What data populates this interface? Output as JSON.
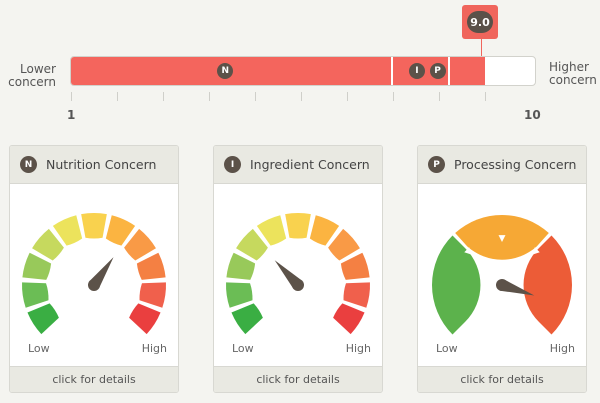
{
  "scale": {
    "left_label": [
      "Lower",
      "concern"
    ],
    "right_label": [
      "Higher",
      "concern"
    ],
    "min_label": "1",
    "max_label": "10",
    "min": 1,
    "max": 10,
    "score": 9.0,
    "score_label": "9.0",
    "fill_color": "#f4655d",
    "markers": [
      {
        "letter": "N",
        "value": 4.0
      },
      {
        "letter": "I",
        "value": 7.7
      },
      {
        "letter": "P",
        "value": 8.1
      }
    ],
    "dividers": [
      7.2,
      8.3
    ]
  },
  "cards": [
    {
      "letter": "N",
      "title": "Nutrition Concern",
      "type": "segments",
      "level": 0.63,
      "low_label": "Low",
      "high_label": "High",
      "footer": "click for details"
    },
    {
      "letter": "I",
      "title": "Ingredient Concern",
      "type": "segments",
      "level": 0.34,
      "low_label": "Low",
      "high_label": "High",
      "footer": "click for details"
    },
    {
      "letter": "P",
      "title": "Processing Concern",
      "type": "bands",
      "level": 0.9,
      "low_label": "Low",
      "high_label": "High",
      "footer": "click for details"
    }
  ],
  "segment_colors": [
    "#3aae43",
    "#6bbd55",
    "#98c95a",
    "#c6d95e",
    "#ece35c",
    "#f9d24e",
    "#fbb441",
    "#f99a46",
    "#f48043",
    "#f0604c",
    "#ea3f3f"
  ],
  "band_colors": [
    "#5cb24c",
    "#f6a835",
    "#ec5c37"
  ]
}
